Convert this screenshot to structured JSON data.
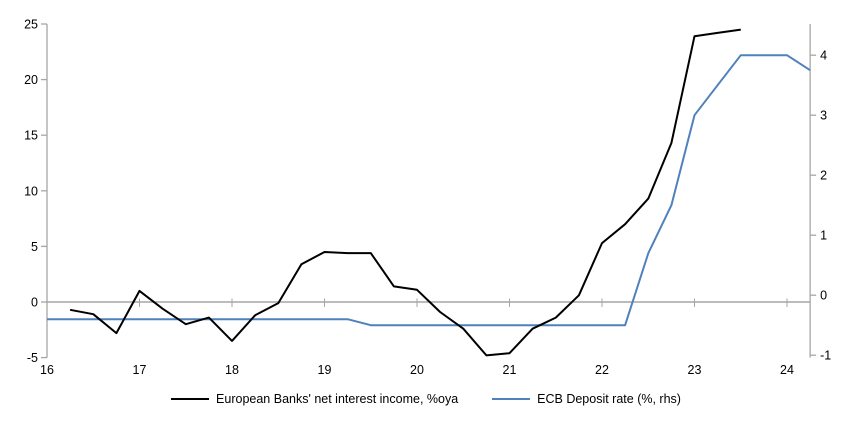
{
  "chart_data": {
    "type": "line",
    "title": "",
    "legend_position": "bottom",
    "grid": "zero-line-only",
    "x_axis": {
      "label": "",
      "ticks": [
        16,
        17,
        18,
        19,
        20,
        21,
        22,
        23,
        24
      ],
      "range": [
        16,
        24.25
      ]
    },
    "left_axis": {
      "label": "",
      "ticks": [
        25,
        20,
        15,
        10,
        5,
        0,
        -5
      ],
      "range": [
        -5,
        25
      ]
    },
    "right_axis": {
      "label": "",
      "ticks": [
        4,
        3,
        2,
        1,
        0,
        -1
      ],
      "range": [
        -1.04,
        4.52
      ]
    },
    "colors": {
      "axis": "#a6a6a6",
      "series_nii": "#000000",
      "series_ecb": "#4f81bd"
    },
    "series": [
      {
        "name": "European Banks' net interest income, %oya",
        "axis": "left",
        "color": "#000000",
        "x": [
          16.25,
          16.5,
          16.75,
          17.0,
          17.25,
          17.5,
          17.75,
          18.0,
          18.25,
          18.5,
          18.75,
          19.0,
          19.25,
          19.5,
          19.75,
          20.0,
          20.25,
          20.5,
          20.75,
          21.0,
          21.25,
          21.5,
          21.75,
          22.0,
          22.25,
          22.5,
          22.75,
          23.0,
          23.25,
          23.5
        ],
        "values": [
          -0.7,
          -1.1,
          -2.8,
          1.0,
          -0.6,
          -2.0,
          -1.4,
          -3.5,
          -1.2,
          -0.1,
          3.4,
          4.5,
          4.4,
          4.4,
          1.4,
          1.1,
          -0.9,
          -2.4,
          -4.8,
          -4.6,
          -2.4,
          -1.4,
          0.6,
          5.3,
          7.0,
          9.3,
          14.3,
          23.9,
          24.2,
          24.5
        ]
      },
      {
        "name": "ECB Deposit rate (%, rhs)",
        "axis": "right",
        "color": "#4f81bd",
        "x": [
          16.0,
          16.25,
          16.5,
          16.75,
          17.0,
          17.25,
          17.5,
          17.75,
          18.0,
          18.25,
          18.5,
          18.75,
          19.0,
          19.25,
          19.5,
          19.75,
          20.0,
          20.25,
          20.5,
          20.75,
          21.0,
          21.25,
          21.5,
          21.75,
          22.0,
          22.25,
          22.5,
          22.75,
          23.0,
          23.25,
          23.5,
          23.75,
          24.0,
          24.25
        ],
        "values": [
          -0.4,
          -0.4,
          -0.4,
          -0.4,
          -0.4,
          -0.4,
          -0.4,
          -0.4,
          -0.4,
          -0.4,
          -0.4,
          -0.4,
          -0.4,
          -0.4,
          -0.5,
          -0.5,
          -0.5,
          -0.5,
          -0.5,
          -0.5,
          -0.5,
          -0.5,
          -0.5,
          -0.5,
          -0.5,
          -0.5,
          0.7,
          1.5,
          3.0,
          3.5,
          4.0,
          4.0,
          4.0,
          3.75
        ]
      }
    ]
  }
}
